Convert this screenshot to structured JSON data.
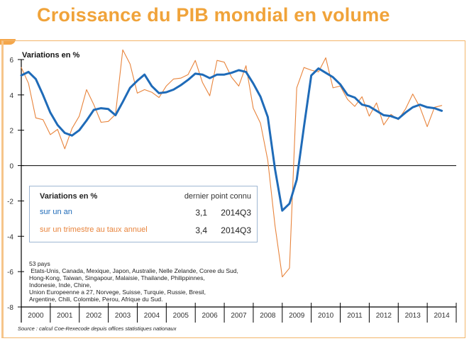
{
  "page": {
    "title": "Croissance du PIB mondial en volume",
    "source": "Source : calcul Coe-Rexecode depuis offices statistiques nationaux"
  },
  "legend": {
    "header": "Variations en %",
    "header_right": "dernier point connu",
    "rows": [
      {
        "label": "sur un an",
        "value": "3,1",
        "period": "2014Q3",
        "color": "#1f6bb8"
      },
      {
        "label": "sur un trimestre au taux annuel",
        "value": "3,4",
        "period": "2014Q3",
        "color": "#e8843c"
      }
    ]
  },
  "notes": {
    "count": "53 pays",
    "lines": [
      " Etats-Unis, Canada, Mexique, Japon, Australie, Nelle Zelande, Coree du Sud,",
      "Hong-Kong, Taiwan, Singapour, Malaisie, Thailande, Philippinnes,",
      "Indonesie, Inde, Chine,",
      "Union Europeenne a 27, Norvege, Suisse, Turquie, Russie, Bresil,",
      "Argentine, Chili, Colombie, Perou, Afrique du Sud."
    ]
  },
  "chart_data": {
    "type": "line",
    "title": "Croissance du PIB mondial en volume",
    "ylabel": "Variations en %",
    "xlabel": "",
    "ylim": [
      -8,
      6
    ],
    "yticks": [
      6,
      4,
      2,
      0,
      -2,
      -4,
      -6,
      -8
    ],
    "categories": [
      "2000",
      "2001",
      "2002",
      "2003",
      "2004",
      "2005",
      "2006",
      "2007",
      "2008",
      "2009",
      "2010",
      "2011",
      "2012",
      "2013",
      "2014"
    ],
    "x_start": "2000Q1",
    "frequency": "quarterly",
    "grid": false,
    "legend_position": "center-left",
    "series": [
      {
        "name": "sur un an",
        "color": "#1f6bb8",
        "values": [
          5.1,
          5.3,
          4.9,
          4.0,
          3.0,
          2.3,
          1.85,
          1.7,
          2.0,
          2.55,
          3.15,
          3.25,
          3.2,
          2.85,
          3.6,
          4.4,
          4.8,
          5.15,
          4.5,
          4.1,
          4.15,
          4.3,
          4.55,
          4.85,
          5.2,
          5.15,
          4.95,
          5.15,
          5.15,
          5.25,
          5.4,
          5.3,
          4.65,
          3.9,
          2.75,
          -0.2,
          -2.55,
          -2.15,
          -0.8,
          2.2,
          5.1,
          5.5,
          5.25,
          5.0,
          4.6,
          4.0,
          3.85,
          3.45,
          3.35,
          3.1,
          2.85,
          2.8,
          2.65,
          3.0,
          3.3,
          3.45,
          3.3,
          3.25,
          3.1
        ]
      },
      {
        "name": "sur un trimestre au taux annuel",
        "color": "#e8843c",
        "values": [
          5.55,
          4.65,
          2.7,
          2.6,
          1.75,
          2.05,
          0.95,
          2.1,
          2.8,
          4.3,
          3.45,
          2.45,
          2.5,
          2.9,
          6.55,
          5.75,
          4.1,
          4.3,
          4.15,
          3.85,
          4.5,
          4.9,
          4.95,
          5.15,
          5.95,
          4.7,
          3.95,
          5.95,
          5.85,
          5.0,
          4.5,
          5.65,
          3.25,
          2.4,
          0.3,
          -3.4,
          -6.3,
          -5.8,
          4.4,
          5.55,
          5.4,
          5.3,
          6.1,
          4.4,
          4.5,
          3.75,
          3.35,
          3.9,
          2.8,
          3.55,
          2.3,
          2.9,
          2.6,
          3.2,
          4.05,
          3.3,
          2.2,
          3.3,
          3.4
        ]
      }
    ]
  }
}
